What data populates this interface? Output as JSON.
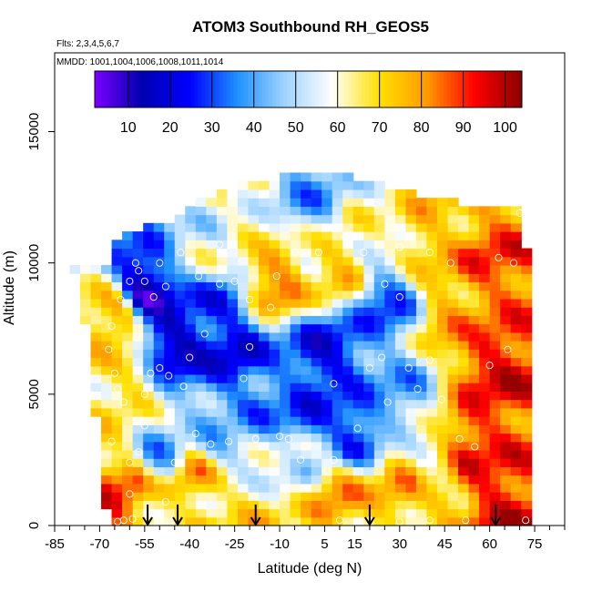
{
  "chart_data": {
    "type": "heatmap",
    "title": "ATOM3 Southbound RH_GEOS5",
    "flights_label": "Flts: 2,3,4,5,6,7",
    "mmdd_label": "MMDD: 1001,1004,1006,1008,1011,1014",
    "xlabel": "Latitude (deg N)",
    "ylabel": "Altitude (m)",
    "xlim": [
      -85,
      85
    ],
    "ylim": [
      0,
      18000
    ],
    "x_ticks": [
      -85,
      -70,
      -55,
      -40,
      -25,
      -10,
      5,
      15,
      30,
      45,
      60,
      75
    ],
    "x_minor_ticks": [
      -80,
      -75,
      -65,
      -60,
      -50,
      -45,
      -35,
      -30,
      -20,
      -15,
      -5,
      0,
      10,
      20,
      25,
      35,
      40,
      50,
      55,
      65,
      70,
      80,
      85
    ],
    "y_ticks": [
      0,
      5000,
      10000,
      15000
    ],
    "colorbar": {
      "ticks": [
        10,
        20,
        30,
        40,
        50,
        60,
        70,
        80,
        90,
        100
      ],
      "range": [
        2,
        104
      ],
      "colors": [
        "#7b00ff",
        "#0000b0",
        "#0000ff",
        "#1e90ff",
        "#9fd3ff",
        "#ffffff",
        "#ffe000",
        "#ff9a00",
        "#ff0000",
        "#8b0000"
      ]
    },
    "arrows_latitude": [
      -54,
      -44,
      -18,
      20,
      62
    ],
    "boundary": {
      "lower_lat": [
        -67,
        -63.5
      ],
      "edge": [
        [
          -67,
          0
        ],
        [
          -71,
          3500
        ],
        [
          -72,
          6000
        ],
        [
          -75,
          8000
        ],
        [
          -79,
          10000
        ],
        [
          -68,
          10000
        ],
        [
          -62,
          11200
        ],
        [
          -46,
          11700
        ],
        [
          -34,
          12500
        ],
        [
          -24,
          13000
        ],
        [
          -10,
          13300
        ],
        [
          12,
          13300
        ],
        [
          24,
          13000
        ],
        [
          38,
          12500
        ],
        [
          70,
          12000
        ],
        [
          73,
          10000
        ],
        [
          73,
          0
        ]
      ],
      "north_edge": 73
    },
    "field_nodes": [
      {
        "lat": -66,
        "alt": 300,
        "rh": 92
      },
      {
        "lat": -60,
        "alt": 1500,
        "rh": 85
      },
      {
        "lat": -55,
        "alt": 300,
        "rh": 72
      },
      {
        "lat": -42,
        "alt": 400,
        "rh": 68
      },
      {
        "lat": -20,
        "alt": 300,
        "rh": 70
      },
      {
        "lat": 20,
        "alt": 400,
        "rh": 70
      },
      {
        "lat": 45,
        "alt": 400,
        "rh": 75
      },
      {
        "lat": 62,
        "alt": 500,
        "rh": 96
      },
      {
        "lat": 62,
        "alt": 6000,
        "rh": 95
      },
      {
        "lat": 62,
        "alt": 10000,
        "rh": 88
      },
      {
        "lat": 55,
        "alt": 3000,
        "rh": 92
      },
      {
        "lat": 48,
        "alt": 8000,
        "rh": 78
      },
      {
        "lat": 40,
        "alt": 2000,
        "rh": 62
      },
      {
        "lat": 30,
        "alt": 5000,
        "rh": 40
      },
      {
        "lat": 25,
        "alt": 8500,
        "rh": 30
      },
      {
        "lat": 15,
        "alt": 3500,
        "rh": 25
      },
      {
        "lat": 5,
        "alt": 6500,
        "rh": 20
      },
      {
        "lat": -5,
        "alt": 2500,
        "rh": 55
      },
      {
        "lat": -15,
        "alt": 5000,
        "rh": 35
      },
      {
        "lat": -30,
        "alt": 8000,
        "rh": 25
      },
      {
        "lat": -30,
        "alt": 3000,
        "rh": 45
      },
      {
        "lat": -45,
        "alt": 7000,
        "rh": 15
      },
      {
        "lat": -50,
        "alt": 2500,
        "rh": 40
      },
      {
        "lat": -55,
        "alt": 9000,
        "rh": 12
      },
      {
        "lat": -62,
        "alt": 5500,
        "rh": 70
      },
      {
        "lat": -65,
        "alt": 8000,
        "rh": 80
      },
      {
        "lat": -20,
        "alt": 11500,
        "rh": 62
      },
      {
        "lat": 0,
        "alt": 12500,
        "rh": 40
      },
      {
        "lat": 20,
        "alt": 11800,
        "rh": 60
      },
      {
        "lat": -35,
        "alt": 10500,
        "rh": 55
      },
      {
        "lat": 40,
        "alt": 11000,
        "rh": 75
      },
      {
        "lat": -12,
        "alt": 9200,
        "rh": 85
      },
      {
        "lat": 10,
        "alt": 9800,
        "rh": 75
      },
      {
        "lat": -38,
        "alt": 1800,
        "rh": 80
      },
      {
        "lat": 30,
        "alt": 1500,
        "rh": 78
      },
      {
        "lat": -25,
        "alt": 6500,
        "rh": 22
      },
      {
        "lat": 0,
        "alt": 4200,
        "rh": 28
      },
      {
        "lat": 10,
        "alt": 1200,
        "rh": 80
      }
    ],
    "obs_points": [
      [
        -64,
        150
      ],
      [
        -62,
        200
      ],
      [
        -59,
        250
      ],
      [
        -52,
        150
      ],
      [
        -50,
        300
      ],
      [
        -48,
        900
      ],
      [
        -45,
        2400
      ],
      [
        -38,
        3500
      ],
      [
        -33,
        3100
      ],
      [
        -27,
        3200
      ],
      [
        -18,
        3300
      ],
      [
        -10,
        3400
      ],
      [
        -3,
        2500
      ],
      [
        10,
        200
      ],
      [
        20,
        200
      ],
      [
        30,
        150
      ],
      [
        40,
        200
      ],
      [
        52,
        200
      ],
      [
        72,
        200
      ],
      [
        -60,
        1200
      ],
      [
        -57,
        2800
      ],
      [
        -55,
        3800
      ],
      [
        -55,
        5000
      ],
      [
        -53,
        5800
      ],
      [
        -50,
        6000
      ],
      [
        -47,
        5700
      ],
      [
        -42,
        5300
      ],
      [
        -35,
        7300
      ],
      [
        -62,
        4700
      ],
      [
        -64,
        5200
      ],
      [
        -65,
        5800
      ],
      [
        -67,
        6700
      ],
      [
        -66,
        7600
      ],
      [
        -63,
        8600
      ],
      [
        -60,
        9300
      ],
      [
        -57,
        9700
      ],
      [
        -55,
        9300
      ],
      [
        -52,
        8700
      ],
      [
        -48,
        9100
      ],
      [
        -43,
        10400
      ],
      [
        -37,
        9500
      ],
      [
        -30,
        9200
      ],
      [
        -25,
        9300
      ],
      [
        -20,
        8600
      ],
      [
        -13,
        8300
      ],
      [
        -11,
        9500
      ],
      [
        -5,
        10400
      ],
      [
        3,
        10400
      ],
      [
        12,
        11000
      ],
      [
        18,
        10400
      ],
      [
        25,
        9200
      ],
      [
        30,
        8700
      ],
      [
        -22,
        5600
      ],
      [
        -7,
        3300
      ],
      [
        8,
        5400
      ],
      [
        16,
        3700
      ],
      [
        20,
        6000
      ],
      [
        24,
        6400
      ],
      [
        33,
        6000
      ],
      [
        36,
        5200
      ],
      [
        40,
        6300
      ],
      [
        44,
        4800
      ],
      [
        50,
        3300
      ],
      [
        55,
        3000
      ],
      [
        60,
        6100
      ],
      [
        66,
        6700
      ],
      [
        68,
        10000
      ],
      [
        63,
        10200
      ],
      [
        47,
        10000
      ],
      [
        40,
        10400
      ],
      [
        30,
        10600
      ],
      [
        -50,
        10000
      ],
      [
        -58,
        10000
      ],
      [
        -15,
        12600
      ],
      [
        -30,
        10700
      ],
      [
        -20,
        6800
      ],
      [
        26,
        4700
      ],
      [
        8,
        2500
      ],
      [
        -40,
        6400
      ],
      [
        -60,
        2400
      ],
      [
        -66,
        3200
      ],
      [
        70,
        11900
      ]
    ]
  }
}
